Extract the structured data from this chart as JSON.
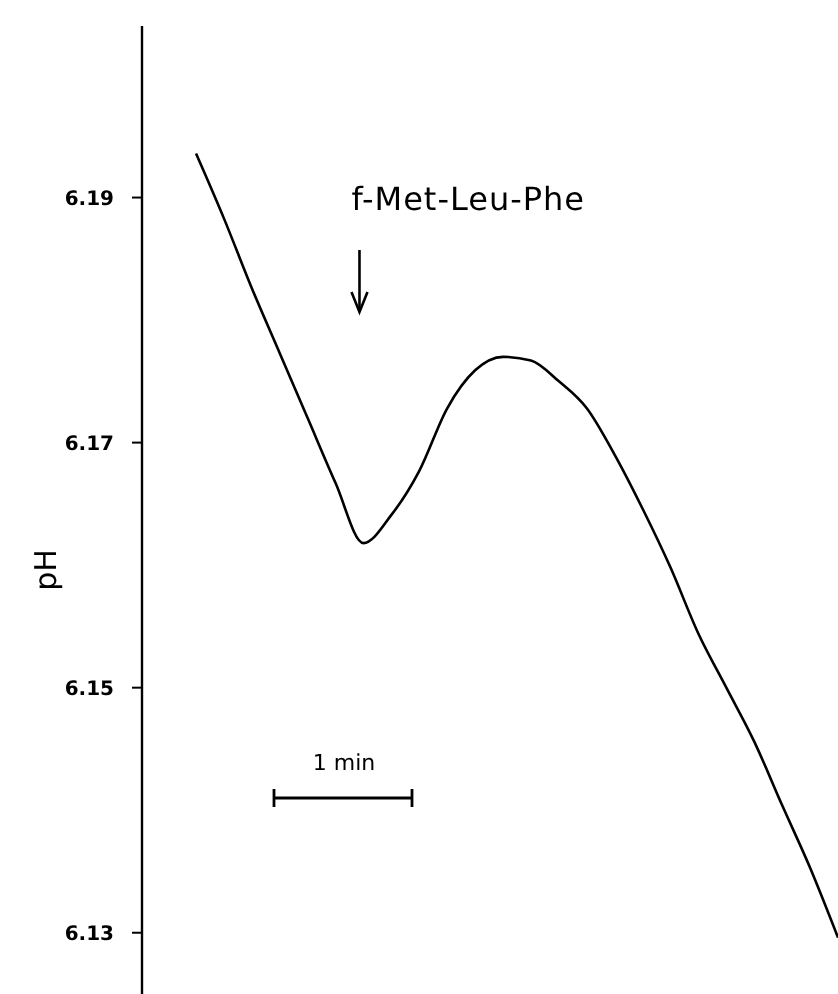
{
  "chart_data": {
    "type": "line",
    "ylabel": "pH",
    "categories": [
      null,
      null,
      null,
      null,
      null,
      null,
      null,
      null,
      null,
      null,
      null,
      null,
      null,
      null,
      null,
      null,
      null,
      null,
      null,
      null,
      null,
      null,
      null,
      null
    ],
    "series": [
      {
        "color": "#000000",
        "values": [
          6.1936,
          6.1883,
          6.1826,
          6.1773,
          6.172,
          6.1667,
          6.1618,
          6.1641,
          6.1677,
          6.1728,
          6.1759,
          6.177,
          6.1767,
          6.175,
          6.1728,
          6.169,
          6.1646,
          6.1598,
          6.1544,
          6.15,
          6.1456,
          6.1404,
          6.1353,
          6.1296
        ]
      }
    ],
    "ylim": [
      6.125,
      6.204
    ],
    "yticks": [
      6.19,
      6.17,
      6.15,
      6.13
    ],
    "annotations": [
      "f-Met-Leu-Phe",
      "1 min"
    ],
    "grid": false,
    "marker": "none",
    "line_style": "solid"
  }
}
